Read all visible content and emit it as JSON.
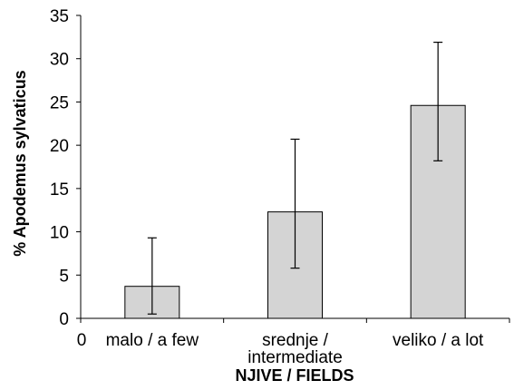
{
  "chart_data": {
    "type": "bar",
    "categories": [
      [
        "malo / a few"
      ],
      [
        "srednje /",
        "intermediate"
      ],
      [
        "veliko / a lot"
      ]
    ],
    "values": [
      3.7,
      12.3,
      24.6
    ],
    "error_low": [
      0.5,
      5.8,
      18.2
    ],
    "error_high": [
      9.3,
      20.7,
      31.9
    ],
    "ylabel": "% Apodemus sylvaticus",
    "xlabel": "NJIVE / FIELDS",
    "x_origin_label": "0",
    "ylim": [
      0,
      35
    ],
    "yticks": [
      0,
      5,
      10,
      15,
      20,
      25,
      30,
      35
    ],
    "bar_color": "#d4d4d4",
    "grid": false,
    "legend": "none"
  }
}
